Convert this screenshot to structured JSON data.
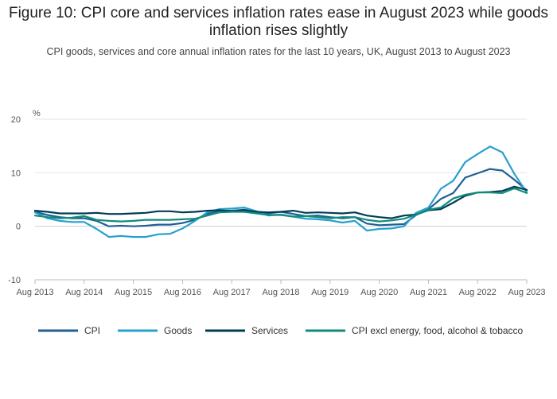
{
  "title": "Figure 10: CPI core and services inflation rates ease in August 2023 while goods inflation rises slightly",
  "subtitle": "CPI goods, services and core annual inflation rates for the last 10 years, UK, August 2013 to August 2023",
  "chart_data": {
    "type": "line",
    "ylabel": "%",
    "ylim": [
      -10,
      20
    ],
    "yticks": [
      -10,
      0,
      10,
      20
    ],
    "xlim": [
      "Aug 2013",
      "Aug 2023"
    ],
    "xticks": [
      "Aug 2013",
      "Aug 2014",
      "Aug 2015",
      "Aug 2016",
      "Aug 2017",
      "Aug 2018",
      "Aug 2019",
      "Aug 2020",
      "Aug 2021",
      "Aug 2022",
      "Aug 2023"
    ],
    "grid": "horizontal",
    "legend_position": "bottom",
    "x": [
      "2013-08",
      "2013-11",
      "2014-02",
      "2014-05",
      "2014-08",
      "2014-11",
      "2015-02",
      "2015-05",
      "2015-08",
      "2015-11",
      "2016-02",
      "2016-05",
      "2016-08",
      "2016-11",
      "2017-02",
      "2017-05",
      "2017-08",
      "2017-11",
      "2018-02",
      "2018-05",
      "2018-08",
      "2018-11",
      "2019-02",
      "2019-05",
      "2019-08",
      "2019-11",
      "2020-02",
      "2020-05",
      "2020-08",
      "2020-11",
      "2021-02",
      "2021-05",
      "2021-08",
      "2021-11",
      "2022-02",
      "2022-05",
      "2022-08",
      "2022-11",
      "2023-02",
      "2023-05",
      "2023-08"
    ],
    "series": [
      {
        "name": "CPI",
        "color": "#206095",
        "values": [
          2.7,
          2.1,
          1.7,
          1.5,
          1.5,
          1.0,
          0.0,
          0.1,
          0.0,
          0.1,
          0.3,
          0.3,
          0.6,
          1.2,
          2.3,
          2.9,
          2.9,
          3.1,
          2.7,
          2.4,
          2.7,
          2.3,
          1.9,
          2.0,
          1.7,
          1.5,
          1.7,
          0.5,
          0.2,
          0.3,
          0.4,
          2.1,
          3.2,
          5.1,
          6.2,
          9.1,
          9.9,
          10.7,
          10.4,
          8.7,
          6.7
        ]
      },
      {
        "name": "Goods",
        "color": "#27a0cc",
        "values": [
          2.6,
          1.5,
          1.0,
          0.8,
          0.8,
          -0.5,
          -2.0,
          -1.8,
          -2.0,
          -2.0,
          -1.5,
          -1.4,
          -0.4,
          1.0,
          2.6,
          3.2,
          3.3,
          3.5,
          2.8,
          2.0,
          2.2,
          1.8,
          1.4,
          1.3,
          1.1,
          0.7,
          1.0,
          -0.8,
          -0.5,
          -0.4,
          0.0,
          2.5,
          3.5,
          7.0,
          8.5,
          12.0,
          13.5,
          14.9,
          13.8,
          9.8,
          6.3
        ]
      },
      {
        "name": "Services",
        "color": "#003c57",
        "values": [
          2.9,
          2.7,
          2.4,
          2.4,
          2.4,
          2.5,
          2.3,
          2.3,
          2.4,
          2.5,
          2.8,
          2.8,
          2.6,
          2.7,
          2.9,
          3.0,
          2.8,
          3.0,
          2.7,
          2.6,
          2.7,
          2.9,
          2.5,
          2.6,
          2.5,
          2.4,
          2.6,
          2.0,
          1.7,
          1.5,
          2.0,
          2.2,
          3.0,
          3.2,
          4.4,
          5.7,
          6.3,
          6.4,
          6.6,
          7.4,
          6.8
        ]
      },
      {
        "name": "CPI excl energy, food, alcohol & tobacco",
        "color": "#118c7b",
        "values": [
          2.0,
          1.7,
          1.5,
          1.6,
          1.9,
          1.2,
          1.0,
          0.9,
          1.0,
          1.2,
          1.2,
          1.2,
          1.3,
          1.4,
          2.0,
          2.6,
          2.7,
          2.7,
          2.4,
          2.1,
          2.1,
          1.8,
          1.9,
          1.7,
          1.5,
          1.7,
          1.7,
          1.2,
          0.9,
          1.1,
          1.4,
          2.2,
          3.1,
          3.5,
          5.2,
          5.9,
          6.3,
          6.3,
          6.2,
          7.1,
          6.2
        ]
      }
    ]
  }
}
